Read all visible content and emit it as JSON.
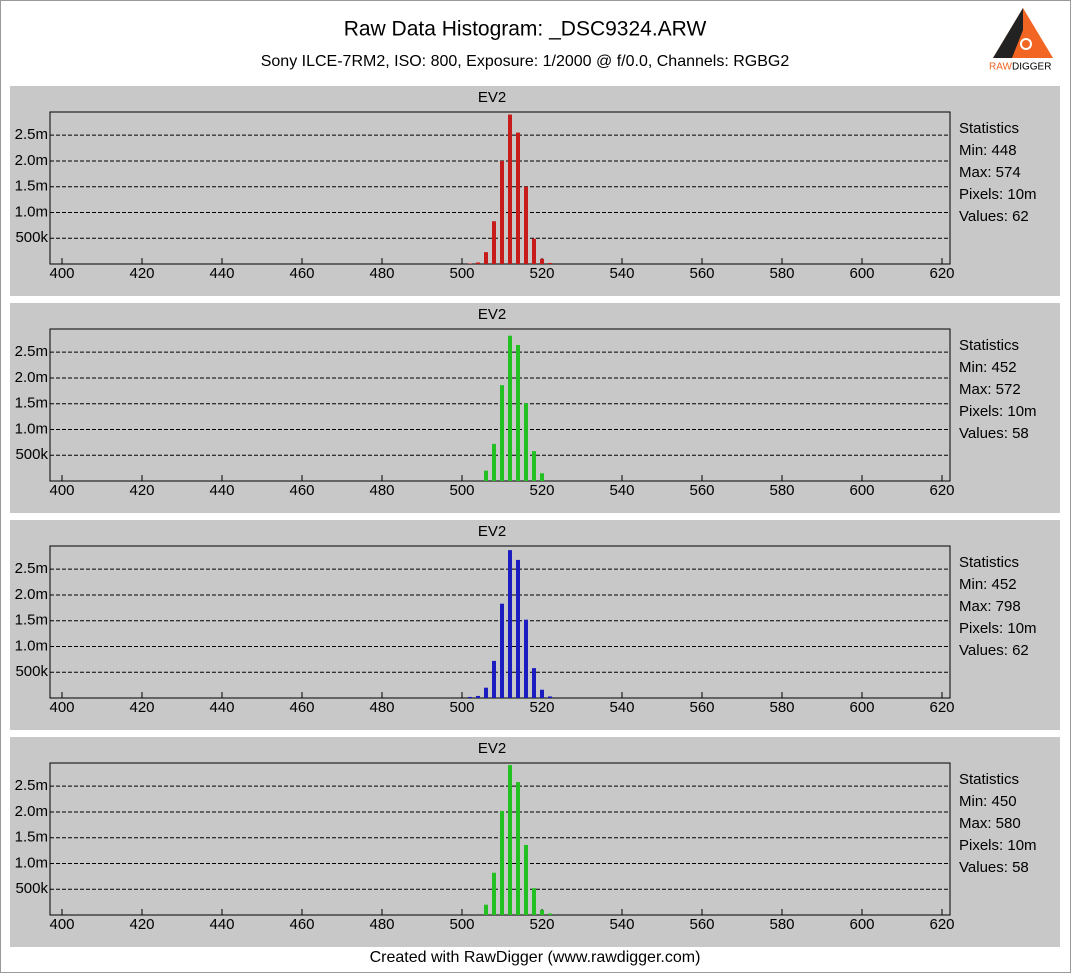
{
  "header": {
    "title": "Raw Data Histogram: _DSC9324.ARW",
    "subtitle": "Sony ILCE-7RM2, ISO: 800, Exposure: 1/2000 @ f/0.0, Channels: RGBG2",
    "logo": [
      "RAW",
      "DIGGER"
    ]
  },
  "chart_data": [
    {
      "type": "bar",
      "title": "EV2",
      "color": "#c81c1c",
      "x": [
        502,
        504,
        506,
        508,
        510,
        512,
        514,
        516,
        518,
        520,
        522
      ],
      "values": [
        10000,
        30000,
        230000,
        830000,
        2000000,
        2900000,
        2550000,
        1500000,
        490000,
        100000,
        20000
      ],
      "xlim": [
        397,
        622
      ],
      "xticks": [
        400,
        420,
        440,
        460,
        480,
        500,
        520,
        540,
        560,
        580,
        600,
        620
      ],
      "ylim": [
        0,
        2950000
      ],
      "yticks": [
        {
          "value": 500000,
          "label": "500k"
        },
        {
          "value": 1000000,
          "label": "1.0m"
        },
        {
          "value": 1500000,
          "label": "1.5m"
        },
        {
          "value": 2000000,
          "label": "2.0m"
        },
        {
          "value": 2500000,
          "label": "2.5m"
        }
      ],
      "grid": true,
      "statistics": [
        "Statistics",
        "Min: 448",
        "Max: 574",
        "Pixels: 10m",
        "Values: 62"
      ]
    },
    {
      "type": "bar",
      "title": "EV2",
      "color": "#22c022",
      "x": [
        506,
        508,
        510,
        512,
        514,
        516,
        518,
        520
      ],
      "values": [
        200000,
        720000,
        1860000,
        2820000,
        2640000,
        1510000,
        580000,
        150000
      ],
      "xlim": [
        397,
        622
      ],
      "xticks": [
        400,
        420,
        440,
        460,
        480,
        500,
        520,
        540,
        560,
        580,
        600,
        620
      ],
      "ylim": [
        0,
        2950000
      ],
      "yticks": [
        {
          "value": 500000,
          "label": "500k"
        },
        {
          "value": 1000000,
          "label": "1.0m"
        },
        {
          "value": 1500000,
          "label": "1.5m"
        },
        {
          "value": 2000000,
          "label": "2.0m"
        },
        {
          "value": 2500000,
          "label": "2.5m"
        }
      ],
      "grid": true,
      "statistics": [
        "Statistics",
        "Min: 452",
        "Max: 572",
        "Pixels: 10m",
        "Values: 58"
      ]
    },
    {
      "type": "bar",
      "title": "EV2",
      "color": "#1c1cc0",
      "x": [
        502,
        504,
        506,
        508,
        510,
        512,
        514,
        516,
        518,
        520,
        522
      ],
      "values": [
        20000,
        40000,
        200000,
        720000,
        1830000,
        2870000,
        2680000,
        1520000,
        580000,
        160000,
        30000
      ],
      "xlim": [
        397,
        622
      ],
      "xticks": [
        400,
        420,
        440,
        460,
        480,
        500,
        520,
        540,
        560,
        580,
        600,
        620
      ],
      "ylim": [
        0,
        2950000
      ],
      "yticks": [
        {
          "value": 500000,
          "label": "500k"
        },
        {
          "value": 1000000,
          "label": "1.0m"
        },
        {
          "value": 1500000,
          "label": "1.5m"
        },
        {
          "value": 2000000,
          "label": "2.0m"
        },
        {
          "value": 2500000,
          "label": "2.5m"
        }
      ],
      "grid": true,
      "statistics": [
        "Statistics",
        "Min: 452",
        "Max: 798",
        "Pixels: 10m",
        "Values: 62"
      ]
    },
    {
      "type": "bar",
      "title": "EV2",
      "color": "#22c022",
      "x": [
        506,
        508,
        510,
        512,
        514,
        516,
        518,
        520,
        522
      ],
      "values": [
        200000,
        820000,
        2020000,
        2910000,
        2580000,
        1360000,
        520000,
        100000,
        30000
      ],
      "xlim": [
        397,
        622
      ],
      "xticks": [
        400,
        420,
        440,
        460,
        480,
        500,
        520,
        540,
        560,
        580,
        600,
        620
      ],
      "ylim": [
        0,
        2950000
      ],
      "yticks": [
        {
          "value": 500000,
          "label": "500k"
        },
        {
          "value": 1000000,
          "label": "1.0m"
        },
        {
          "value": 1500000,
          "label": "1.5m"
        },
        {
          "value": 2000000,
          "label": "2.0m"
        },
        {
          "value": 2500000,
          "label": "2.5m"
        }
      ],
      "grid": true,
      "statistics": [
        "Statistics",
        "Min: 450",
        "Max: 580",
        "Pixels: 10m",
        "Values: 58"
      ]
    }
  ],
  "footer": "Created with RawDigger (www.rawdigger.com)"
}
